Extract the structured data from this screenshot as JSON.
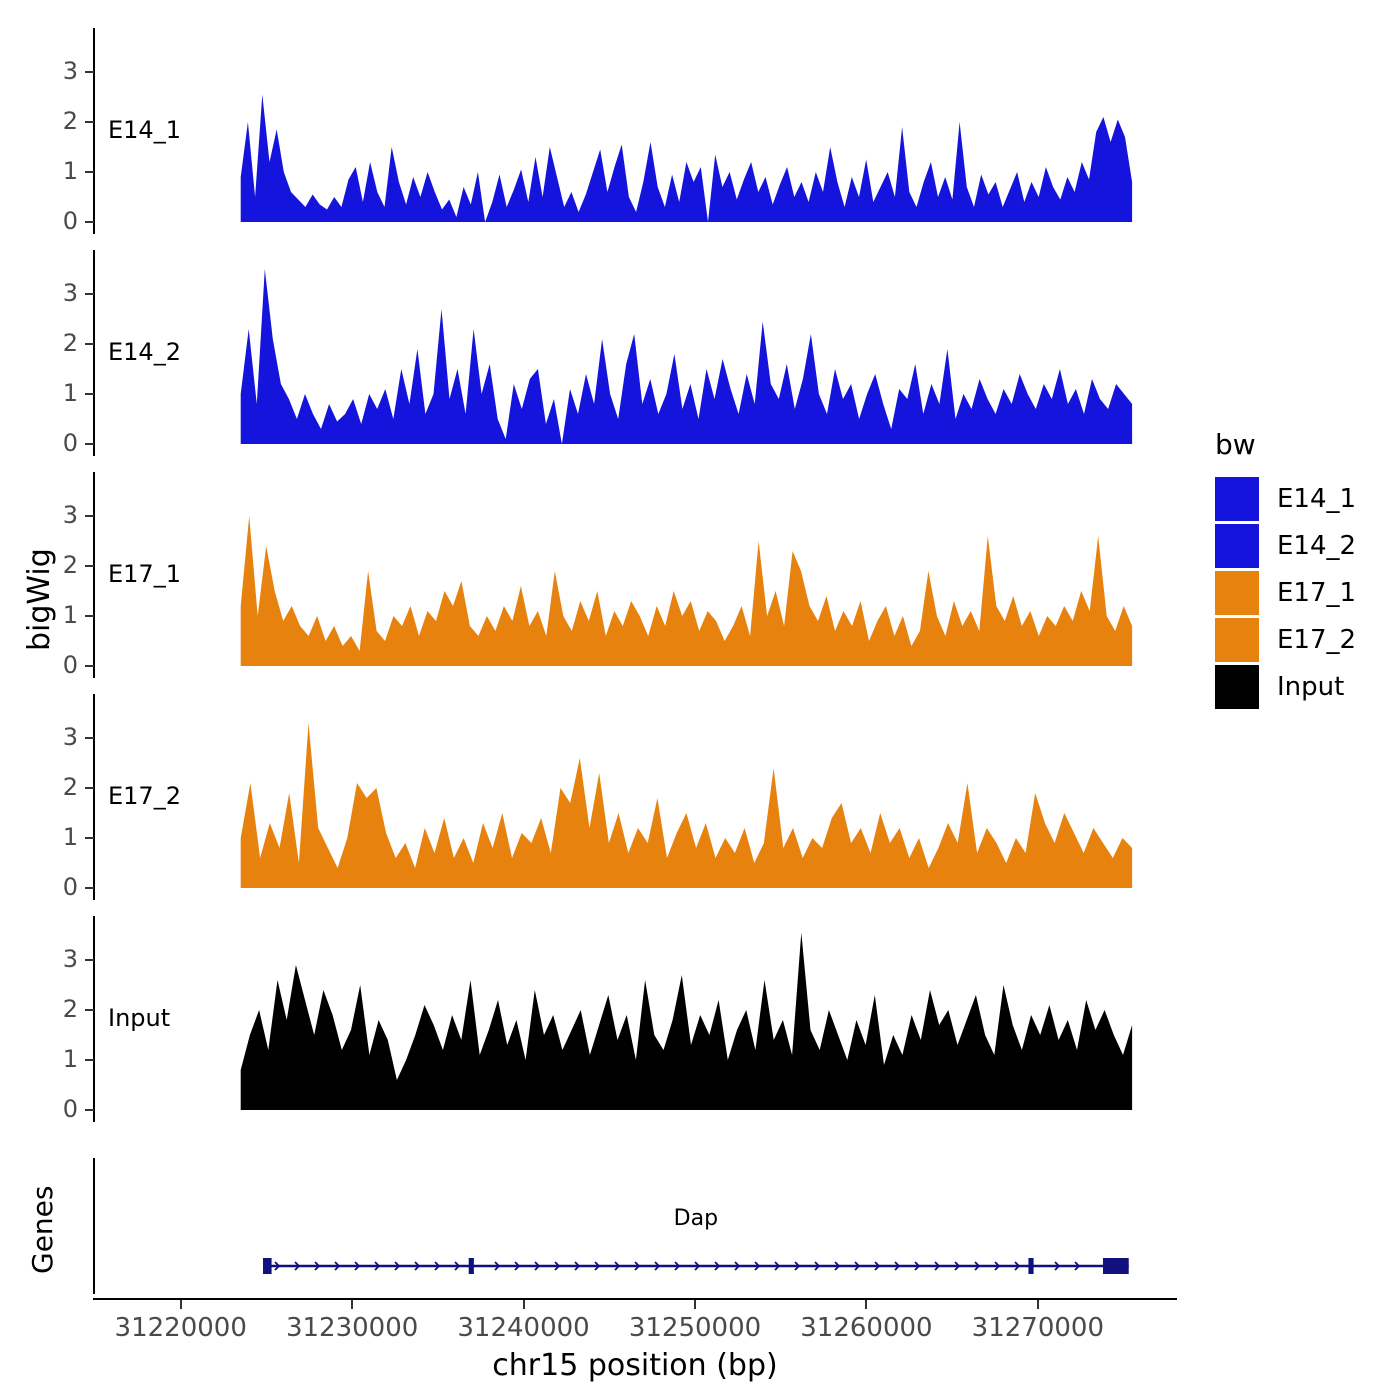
{
  "y_axis_title": "bigWig",
  "genes_axis_title": "Genes",
  "x_axis": {
    "title": "chr15 position (bp)",
    "ticks": [
      31220000,
      31230000,
      31240000,
      31250000,
      31260000,
      31270000
    ],
    "tick_labels": [
      "31220000",
      "31230000",
      "31240000",
      "31250000",
      "31260000",
      "31270000"
    ]
  },
  "legend": {
    "title": "bw",
    "items": [
      {
        "label": "E14_1",
        "color": "#1414DC"
      },
      {
        "label": "E14_2",
        "color": "#1414DC"
      },
      {
        "label": "E17_1",
        "color": "#E8820E"
      },
      {
        "label": "E17_2",
        "color": "#E8820E"
      },
      {
        "label": "Input",
        "color": "#000000"
      }
    ]
  },
  "chart_data": {
    "type": "area",
    "title": "",
    "xlabel": "chr15 position (bp)",
    "ylabel": "bigWig",
    "x_range": [
      31215000,
      31278000
    ],
    "signal_range": [
      31223500,
      31275500
    ],
    "y_ticks": [
      0,
      1,
      2,
      3
    ],
    "ylim": [
      0,
      3.6
    ],
    "grid": false,
    "legend_position": "right",
    "tracks": [
      {
        "name": "E14_1",
        "color": "#1414DC",
        "values": [
          0.9,
          2.0,
          0.5,
          2.55,
          1.2,
          1.85,
          1.0,
          0.6,
          0.45,
          0.3,
          0.55,
          0.35,
          0.25,
          0.5,
          0.3,
          0.85,
          1.1,
          0.4,
          1.2,
          0.6,
          0.3,
          1.5,
          0.8,
          0.35,
          0.9,
          0.5,
          1.0,
          0.6,
          0.25,
          0.45,
          0.1,
          0.7,
          0.35,
          1.0,
          0.0,
          0.4,
          0.95,
          0.3,
          0.65,
          1.05,
          0.4,
          1.3,
          0.5,
          1.5,
          0.9,
          0.3,
          0.6,
          0.2,
          0.55,
          1.0,
          1.45,
          0.6,
          1.1,
          1.55,
          0.5,
          0.2,
          0.8,
          1.6,
          0.7,
          0.3,
          0.95,
          0.4,
          1.2,
          0.8,
          1.1,
          0.0,
          1.35,
          0.7,
          1.0,
          0.45,
          0.85,
          1.2,
          0.6,
          0.9,
          0.35,
          0.75,
          1.1,
          0.5,
          0.8,
          0.4,
          1.0,
          0.6,
          1.5,
          0.8,
          0.3,
          0.9,
          0.5,
          1.25,
          0.4,
          0.7,
          1.0,
          0.5,
          1.9,
          0.6,
          0.3,
          0.8,
          1.2,
          0.5,
          0.9,
          0.45,
          2.0,
          0.7,
          0.3,
          0.95,
          0.55,
          0.8,
          0.3,
          0.65,
          1.0,
          0.4,
          0.8,
          0.5,
          1.1,
          0.7,
          0.45,
          0.9,
          0.6,
          1.2,
          0.85,
          1.8,
          2.1,
          1.6,
          2.05,
          1.7,
          0.8
        ]
      },
      {
        "name": "E14_2",
        "color": "#1414DC",
        "values": [
          1.0,
          2.3,
          0.8,
          3.5,
          2.1,
          1.2,
          0.9,
          0.5,
          1.0,
          0.6,
          0.3,
          0.8,
          0.45,
          0.6,
          0.9,
          0.4,
          1.0,
          0.7,
          1.1,
          0.5,
          1.5,
          0.8,
          1.9,
          0.6,
          1.0,
          2.7,
          0.9,
          1.5,
          0.6,
          2.3,
          1.0,
          1.6,
          0.5,
          0.1,
          1.2,
          0.7,
          1.3,
          1.5,
          0.4,
          0.9,
          0.0,
          1.1,
          0.6,
          1.4,
          0.8,
          2.1,
          1.0,
          0.5,
          1.6,
          2.2,
          0.8,
          1.3,
          0.6,
          1.0,
          1.8,
          0.7,
          1.2,
          0.5,
          1.5,
          0.9,
          1.7,
          1.1,
          0.6,
          1.4,
          0.8,
          2.45,
          1.2,
          0.9,
          1.6,
          0.7,
          1.3,
          2.2,
          1.0,
          0.6,
          1.5,
          0.9,
          1.2,
          0.5,
          1.0,
          1.4,
          0.8,
          0.3,
          1.1,
          0.9,
          1.6,
          0.6,
          1.2,
          0.8,
          1.9,
          0.5,
          1.0,
          0.7,
          1.3,
          0.9,
          0.6,
          1.1,
          0.8,
          1.4,
          1.0,
          0.7,
          1.2,
          0.9,
          1.5,
          0.8,
          1.1,
          0.6,
          1.3,
          0.9,
          0.7,
          1.2,
          1.0,
          0.8
        ]
      },
      {
        "name": "E17_1",
        "color": "#E8820E",
        "values": [
          1.2,
          3.0,
          1.0,
          2.4,
          1.5,
          0.9,
          1.2,
          0.8,
          0.6,
          1.0,
          0.5,
          0.8,
          0.4,
          0.6,
          0.3,
          1.9,
          0.7,
          0.5,
          1.0,
          0.8,
          1.2,
          0.6,
          1.1,
          0.9,
          1.5,
          1.2,
          1.7,
          0.8,
          0.6,
          1.0,
          0.7,
          1.2,
          0.9,
          1.6,
          0.8,
          1.1,
          0.6,
          1.9,
          1.0,
          0.7,
          1.3,
          0.9,
          1.5,
          0.6,
          1.1,
          0.8,
          1.3,
          1.0,
          0.6,
          1.2,
          0.8,
          1.5,
          1.0,
          1.3,
          0.7,
          1.1,
          0.9,
          0.5,
          0.8,
          1.2,
          0.6,
          2.5,
          1.0,
          1.5,
          0.8,
          2.3,
          1.9,
          1.2,
          0.9,
          1.4,
          0.7,
          1.1,
          0.8,
          1.3,
          0.5,
          0.9,
          1.2,
          0.6,
          1.0,
          0.4,
          0.7,
          1.9,
          1.0,
          0.6,
          1.3,
          0.8,
          1.1,
          0.7,
          2.6,
          1.2,
          0.9,
          1.4,
          0.8,
          1.1,
          0.6,
          1.0,
          0.8,
          1.2,
          0.9,
          1.5,
          1.1,
          2.6,
          1.0,
          0.7,
          1.2,
          0.8
        ]
      },
      {
        "name": "E17_2",
        "color": "#E8820E",
        "values": [
          1.0,
          2.1,
          0.6,
          1.3,
          0.8,
          1.9,
          0.5,
          3.3,
          1.2,
          0.8,
          0.4,
          1.0,
          2.1,
          1.8,
          2.0,
          1.1,
          0.6,
          0.9,
          0.4,
          1.2,
          0.7,
          1.4,
          0.6,
          1.0,
          0.5,
          1.3,
          0.8,
          1.5,
          0.6,
          1.1,
          0.9,
          1.4,
          0.7,
          2.0,
          1.7,
          2.6,
          1.2,
          2.3,
          0.9,
          1.5,
          0.7,
          1.2,
          0.9,
          1.8,
          0.6,
          1.1,
          1.5,
          0.8,
          1.3,
          0.6,
          1.0,
          0.7,
          1.2,
          0.5,
          0.9,
          2.4,
          0.8,
          1.2,
          0.6,
          1.0,
          0.8,
          1.4,
          1.7,
          0.9,
          1.2,
          0.7,
          1.5,
          0.9,
          1.2,
          0.6,
          1.0,
          0.4,
          0.8,
          1.3,
          0.9,
          2.1,
          0.7,
          1.2,
          0.9,
          0.5,
          1.0,
          0.7,
          1.9,
          1.3,
          0.9,
          1.5,
          1.1,
          0.7,
          1.2,
          0.9,
          0.6,
          1.0,
          0.8
        ]
      },
      {
        "name": "Input",
        "color": "#000000",
        "values": [
          0.8,
          1.5,
          2.0,
          1.2,
          2.6,
          1.8,
          2.9,
          2.2,
          1.5,
          2.4,
          1.9,
          1.2,
          1.6,
          2.5,
          1.1,
          1.8,
          1.4,
          0.6,
          1.0,
          1.5,
          2.1,
          1.7,
          1.2,
          1.9,
          1.4,
          2.6,
          1.1,
          1.6,
          2.2,
          1.3,
          1.8,
          1.0,
          2.4,
          1.5,
          1.9,
          1.2,
          1.6,
          2.0,
          1.1,
          1.7,
          2.3,
          1.4,
          1.9,
          1.0,
          2.6,
          1.5,
          1.2,
          1.8,
          2.7,
          1.3,
          1.9,
          1.5,
          2.2,
          1.0,
          1.6,
          2.0,
          1.2,
          2.6,
          1.4,
          1.8,
          1.1,
          3.55,
          1.6,
          1.2,
          2.0,
          1.5,
          1.0,
          1.8,
          1.3,
          2.3,
          0.9,
          1.5,
          1.1,
          1.9,
          1.4,
          2.4,
          1.7,
          2.0,
          1.3,
          1.8,
          2.3,
          1.5,
          1.1,
          2.5,
          1.7,
          1.2,
          1.9,
          1.5,
          2.1,
          1.4,
          1.8,
          1.2,
          2.2,
          1.6,
          2.0,
          1.5,
          1.1,
          1.7
        ]
      }
    ],
    "gene": {
      "name": "Dap",
      "strand": "+",
      "color": "#10107E",
      "start": 31224800,
      "end": 31275300,
      "exons": [
        {
          "start": 31224800,
          "end": 31225300
        },
        {
          "start": 31236800,
          "end": 31237100
        },
        {
          "start": 31269450,
          "end": 31269750
        },
        {
          "start": 31273800,
          "end": 31275300
        }
      ]
    }
  }
}
